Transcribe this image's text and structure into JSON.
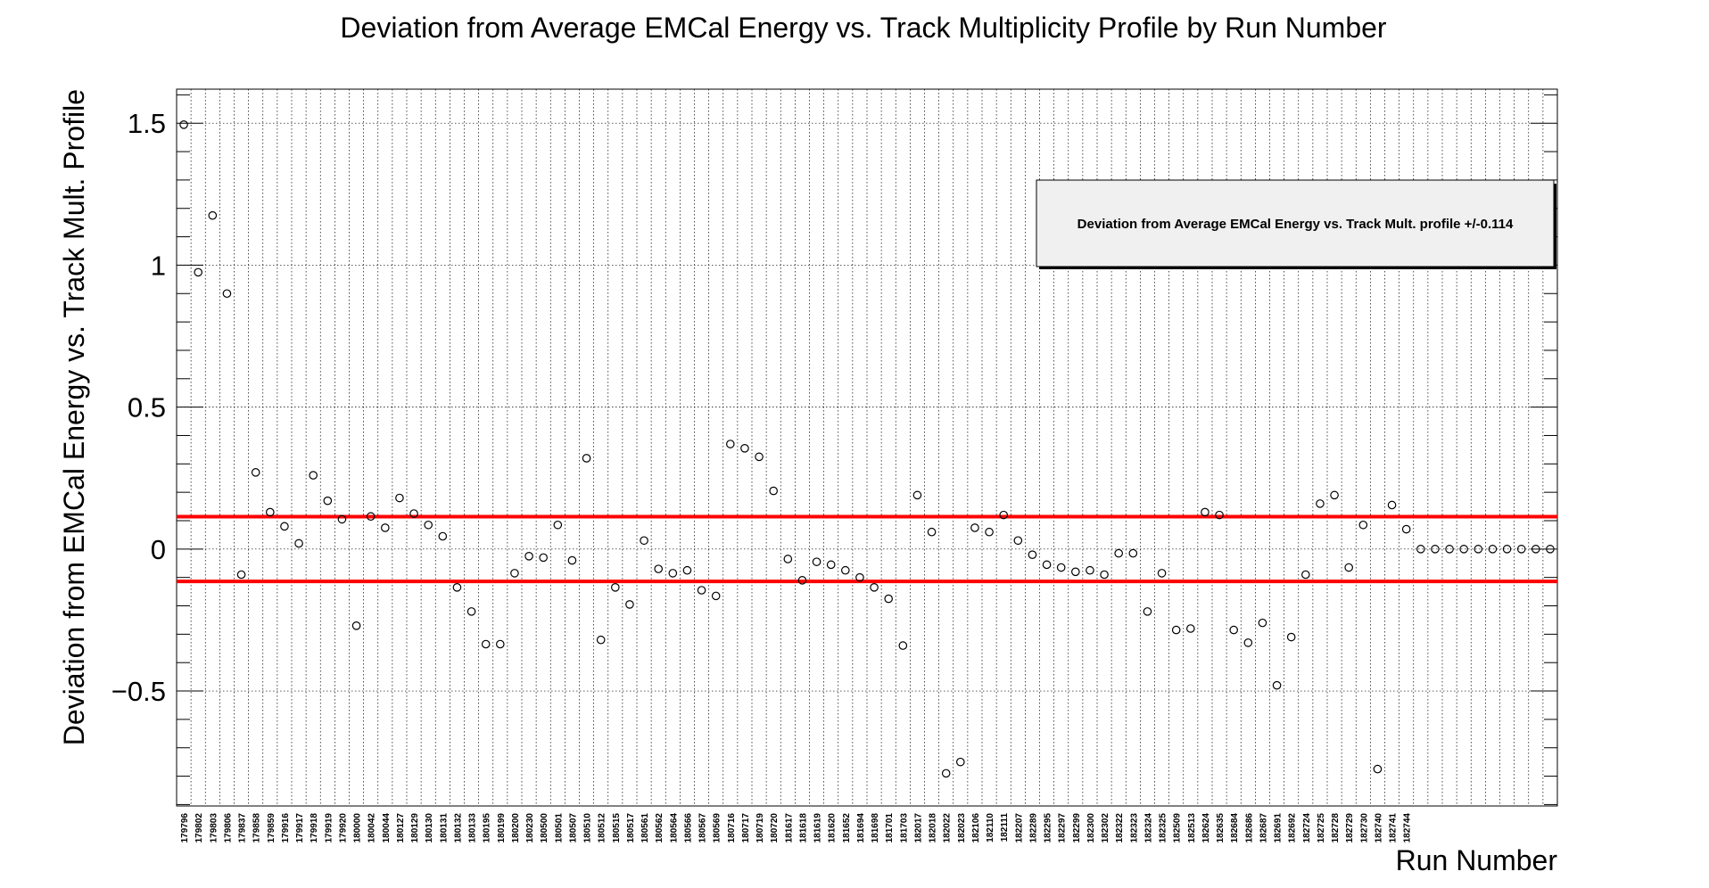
{
  "chart_data": {
    "type": "scatter",
    "title": "Deviation from Average EMCal Energy vs. Track Multiplicity Profile by Run Number",
    "xlabel": "Run Number",
    "ylabel": "Deviation from EMCal Energy vs. Track Mult. Profile",
    "yticks": [
      {
        "value": 1.5,
        "label": "1.5"
      },
      {
        "value": 1,
        "label": "1"
      },
      {
        "value": 0.5,
        "label": "0.5"
      },
      {
        "value": 0,
        "label": "0"
      },
      {
        "value": -0.5,
        "label": "−0.5"
      }
    ],
    "ylim": [
      -0.905,
      1.62
    ],
    "grid": true,
    "legend": {
      "text": "Deviation from Average EMCal Energy vs. Track Mult. profile +/-0.114",
      "position": "top-right"
    },
    "threshold": {
      "value": 0.114,
      "color": "#ff0000"
    },
    "marker_color": "#000000",
    "categories": [
      "179796",
      "179802",
      "179803",
      "179806",
      "179837",
      "179858",
      "179859",
      "179916",
      "179917",
      "179918",
      "179919",
      "179920",
      "180000",
      "180042",
      "180044",
      "180127",
      "180129",
      "180130",
      "180131",
      "180132",
      "180133",
      "180195",
      "180199",
      "180200",
      "180230",
      "180500",
      "180501",
      "180507",
      "180510",
      "180512",
      "180515",
      "180517",
      "180561",
      "180562",
      "180564",
      "180566",
      "180567",
      "180569",
      "180716",
      "180717",
      "180719",
      "180720",
      "181617",
      "181618",
      "181619",
      "181620",
      "181652",
      "181694",
      "181698",
      "181701",
      "181703",
      "182017",
      "182018",
      "182022",
      "182023",
      "182106",
      "182110",
      "182111",
      "182207",
      "182289",
      "182295",
      "182297",
      "182299",
      "182300",
      "182302",
      "182322",
      "182323",
      "182324",
      "182325",
      "182509",
      "182513",
      "182624",
      "182635",
      "182684",
      "182686",
      "182687",
      "182691",
      "182692",
      "182724",
      "182725",
      "182728",
      "182729",
      "182730",
      "182740",
      "182741",
      "182744",
      "",
      "",
      "",
      "",
      "",
      "",
      "",
      "",
      "",
      ""
    ],
    "values": [
      1.495,
      0.975,
      1.175,
      0.9,
      -0.09,
      0.27,
      0.13,
      0.08,
      0.02,
      0.26,
      0.17,
      0.105,
      -0.27,
      0.115,
      0.075,
      0.18,
      0.125,
      0.085,
      0.045,
      -0.135,
      -0.22,
      -0.335,
      -0.335,
      -0.085,
      -0.025,
      -0.03,
      0.085,
      -0.04,
      0.32,
      -0.32,
      -0.135,
      -0.195,
      0.03,
      -0.07,
      -0.085,
      -0.075,
      -0.145,
      -0.165,
      0.37,
      0.355,
      0.325,
      0.205,
      -0.035,
      -0.11,
      -0.045,
      -0.055,
      -0.075,
      -0.1,
      -0.135,
      -0.175,
      -0.34,
      0.19,
      0.06,
      -0.79,
      -0.75,
      0.075,
      0.06,
      0.12,
      0.03,
      -0.02,
      -0.055,
      -0.065,
      -0.08,
      -0.075,
      -0.09,
      -0.015,
      -0.015,
      -0.22,
      -0.085,
      -0.285,
      -0.28,
      0.13,
      0.12,
      -0.285,
      -0.33,
      -0.26,
      -0.48,
      -0.31,
      -0.09,
      0.16,
      0.19,
      -0.065,
      0.085,
      -0.775,
      0.155,
      0.07,
      0,
      0,
      0,
      0,
      0,
      0,
      0,
      0,
      0,
      0
    ]
  }
}
